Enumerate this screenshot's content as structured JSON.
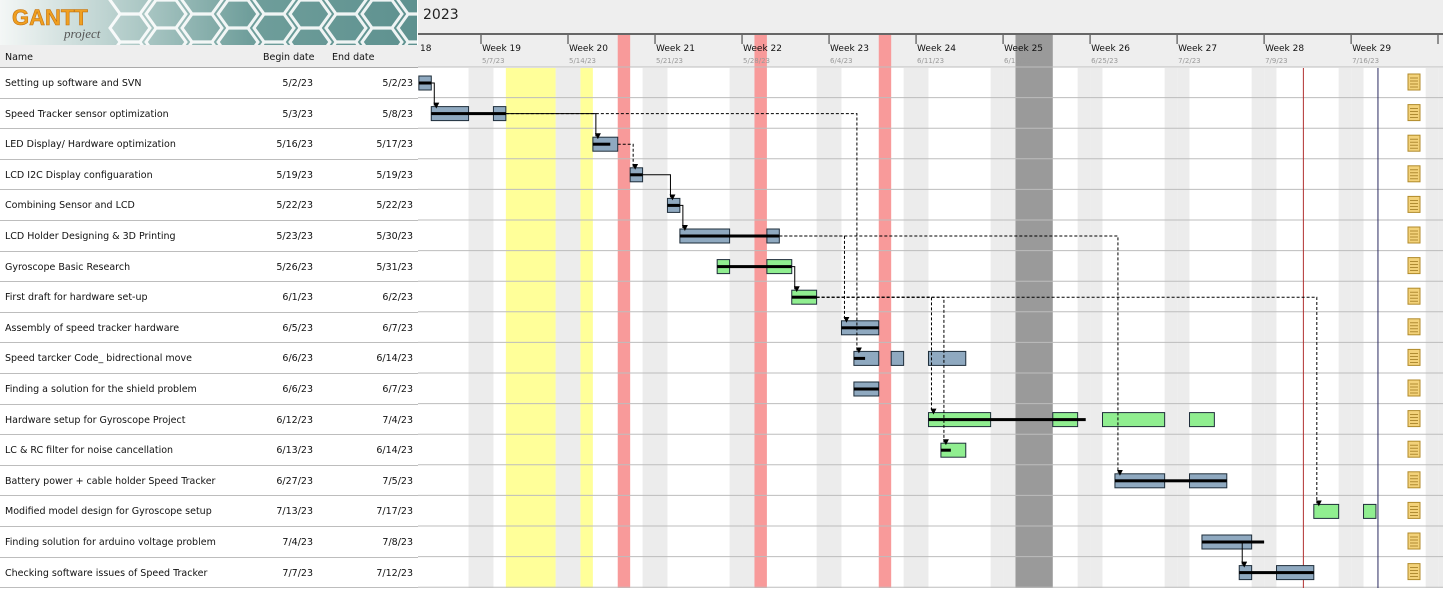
{
  "logo": {
    "brand": "GANTT",
    "sub": "project"
  },
  "timeline": {
    "year": "2023",
    "cut_label": "18",
    "weeks": [
      {
        "label": "Week 19",
        "date": "5/7/23",
        "start": "2023-05-07"
      },
      {
        "label": "Week 20",
        "date": "5/14/23",
        "start": "2023-05-14"
      },
      {
        "label": "Week 21",
        "date": "5/21/23",
        "start": "2023-05-21"
      },
      {
        "label": "Week 22",
        "date": "5/28/23",
        "start": "2023-05-28"
      },
      {
        "label": "Week 23",
        "date": "6/4/23",
        "start": "2023-06-04"
      },
      {
        "label": "Week 24",
        "date": "6/11/23",
        "start": "2023-06-11"
      },
      {
        "label": "Week 25",
        "date": "6/18/23",
        "start": "2023-06-18"
      },
      {
        "label": "Week 26",
        "date": "6/25/23",
        "start": "2023-06-25"
      },
      {
        "label": "Week 27",
        "date": "7/2/23",
        "start": "2023-07-02"
      },
      {
        "label": "Week 28",
        "date": "7/9/23",
        "start": "2023-07-09"
      },
      {
        "label": "Week 29",
        "date": "7/16/23",
        "start": "2023-07-16"
      }
    ],
    "highlight_days": [
      {
        "from": "2023-05-09",
        "to": "2023-05-12",
        "color": "#ffff99"
      },
      {
        "from": "2023-05-15",
        "to": "2023-05-15",
        "color": "#ffff99"
      },
      {
        "from": "2023-05-18",
        "to": "2023-05-18",
        "color": "#f89a9a"
      },
      {
        "from": "2023-05-29",
        "to": "2023-05-29",
        "color": "#f89a9a"
      },
      {
        "from": "2023-06-08",
        "to": "2023-06-08",
        "color": "#f89a9a"
      },
      {
        "from": "2023-06-19",
        "to": "2023-06-21",
        "color": "#9a9a9a"
      }
    ],
    "markers": [
      {
        "date": "2023-07-12",
        "color": "#b03030"
      },
      {
        "date": "2023-07-18",
        "color": "#2a2a60"
      }
    ]
  },
  "table": {
    "headers": {
      "name": "Name",
      "begin": "Begin date",
      "end": "End date"
    },
    "tasks": [
      {
        "name": "Setting up software and SVN",
        "begin": "5/2/23",
        "end": "5/2/23",
        "color": "#8fa9c0",
        "progress": 100,
        "notes_icon": "notes-icon"
      },
      {
        "name": "Speed Tracker sensor optimization",
        "begin": "5/3/23",
        "end": "5/8/23",
        "color": "#8fa9c0",
        "progress": 100,
        "notes_icon": "notes-icon"
      },
      {
        "name": "LED Display/ Hardware optimization",
        "begin": "5/16/23",
        "end": "5/17/23",
        "color": "#8fa9c0",
        "progress": 70,
        "notes_icon": "notes-icon"
      },
      {
        "name": "LCD I2C Display configuaration",
        "begin": "5/19/23",
        "end": "5/19/23",
        "color": "#8fa9c0",
        "progress": 100,
        "notes_icon": "notes-icon"
      },
      {
        "name": "Combining Sensor and LCD",
        "begin": "5/22/23",
        "end": "5/22/23",
        "color": "#8fa9c0",
        "progress": 100,
        "notes_icon": "notes-icon"
      },
      {
        "name": "LCD Holder Designing & 3D Printing",
        "begin": "5/23/23",
        "end": "5/30/23",
        "color": "#8fa9c0",
        "progress": 100,
        "notes_icon": "notes-icon"
      },
      {
        "name": "Gyroscope Basic Research",
        "begin": "5/26/23",
        "end": "5/31/23",
        "color": "#90ee90",
        "progress": 100,
        "notes_icon": "notes-icon"
      },
      {
        "name": "First draft for hardware set-up",
        "begin": "6/1/23",
        "end": "6/2/23",
        "color": "#90ee90",
        "progress": 100,
        "notes_icon": "notes-icon"
      },
      {
        "name": "Assembly of speed tracker hardware",
        "begin": "6/5/23",
        "end": "6/7/23",
        "color": "#8fa9c0",
        "progress": 100,
        "notes_icon": "notes-icon"
      },
      {
        "name": "Speed tarcker Code_ bidrectional move",
        "begin": "6/6/23",
        "end": "6/14/23",
        "color": "#8fa9c0",
        "progress": 10,
        "notes_icon": "notes-icon"
      },
      {
        "name": "Finding a solution for the shield problem",
        "begin": "6/6/23",
        "end": "6/7/23",
        "color": "#8fa9c0",
        "progress": 100,
        "notes_icon": "notes-icon"
      },
      {
        "name": "Hardware setup for Gyroscope Project",
        "begin": "6/12/23",
        "end": "7/4/23",
        "color": "#90ee90",
        "progress": 55,
        "notes_icon": "notes-icon"
      },
      {
        "name": "LC & RC filter for noise cancellation",
        "begin": "6/13/23",
        "end": "6/14/23",
        "color": "#90ee90",
        "progress": 40,
        "notes_icon": "notes-icon"
      },
      {
        "name": "Battery power + cable holder Speed Tracker",
        "begin": "6/27/23",
        "end": "7/5/23",
        "color": "#8fa9c0",
        "progress": 100,
        "notes_icon": "notes-icon"
      },
      {
        "name": "Modified model design for Gyroscope setup",
        "begin": "7/13/23",
        "end": "7/17/23",
        "color": "#90ee90",
        "progress": 0,
        "notes_icon": "notes-icon"
      },
      {
        "name": "Finding solution for arduino voltage problem",
        "begin": "7/4/23",
        "end": "7/8/23",
        "color": "#8fa9c0",
        "progress": 100,
        "notes_icon": "notes-icon"
      },
      {
        "name": "Checking software issues of Speed Tracker",
        "begin": "7/7/23",
        "end": "7/12/23",
        "color": "#8fa9c0",
        "progress": 100,
        "notes_icon": "notes-icon"
      }
    ],
    "dependencies": [
      {
        "from": 0,
        "to": 1,
        "style": "solid"
      },
      {
        "from": 1,
        "to": 2,
        "style": "solid"
      },
      {
        "from": 1,
        "to": 9,
        "style": "dashed"
      },
      {
        "from": 2,
        "to": 3,
        "style": "dashed"
      },
      {
        "from": 3,
        "to": 4,
        "style": "solid"
      },
      {
        "from": 4,
        "to": 5,
        "style": "solid"
      },
      {
        "from": 5,
        "to": 8,
        "style": "dashed"
      },
      {
        "from": 5,
        "to": 13,
        "style": "dashed"
      },
      {
        "from": 6,
        "to": 7,
        "style": "solid"
      },
      {
        "from": 7,
        "to": 11,
        "style": "dashed"
      },
      {
        "from": 7,
        "to": 12,
        "style": "dashed"
      },
      {
        "from": 7,
        "to": 14,
        "style": "dashed"
      },
      {
        "from": 15,
        "to": 16,
        "style": "solid"
      }
    ]
  }
}
